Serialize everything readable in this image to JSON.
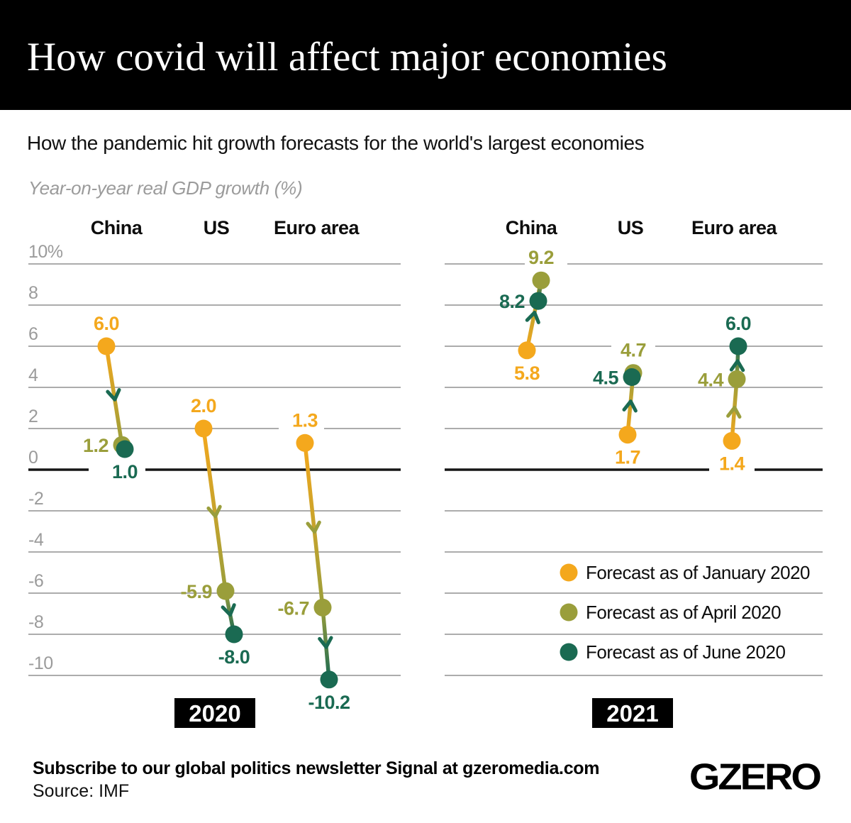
{
  "header": {
    "title": "How covid will affect major economies"
  },
  "subtitle": "How the pandemic hit growth forecasts for the world's largest economies",
  "axis_note": "Year-on-year real GDP growth (%)",
  "colors": {
    "january": "#F4A81D",
    "april": "#9A9E3B",
    "june": "#1A6A52",
    "grid_line": "#ACACAC",
    "zero_line": "#161616",
    "tick_label": "#9B9B9B",
    "header_text": "#0d0d0d",
    "year_badge_bg": "#000000",
    "year_badge_text": "#FFFFFF"
  },
  "legend": [
    {
      "series": "january",
      "label": "Forecast as of January 2020"
    },
    {
      "series": "april",
      "label": "Forecast as of April 2020"
    },
    {
      "series": "june",
      "label": "Forecast as of June 2020"
    }
  ],
  "chart_data": {
    "type": "scatter",
    "title": "How the pandemic hit growth forecasts for the world's largest economies",
    "ylabel": "Year-on-year real GDP growth (%)",
    "ylim": [
      -11,
      11
    ],
    "yticks": [
      10,
      8,
      6,
      4,
      2,
      0,
      -2,
      -4,
      -6,
      -8,
      -10
    ],
    "ytick_labels": [
      "10%",
      "8",
      "6",
      "4",
      "2",
      "0",
      "-2",
      "-4",
      "-6",
      "-8",
      "-10"
    ],
    "grid": true,
    "legend_position": "bottom-right-of-second-panel",
    "series_order": [
      "january",
      "april",
      "june"
    ],
    "panels": [
      {
        "year": "2020",
        "columns": [
          {
            "name": "China",
            "points": [
              {
                "series": "january",
                "value": 6.0,
                "label": "6.0",
                "label_pos": "above"
              },
              {
                "series": "april",
                "value": 1.2,
                "label": "1.2",
                "label_pos": "left"
              },
              {
                "series": "june",
                "value": 1.0,
                "label": "1.0",
                "label_pos": "below"
              }
            ]
          },
          {
            "name": "US",
            "points": [
              {
                "series": "january",
                "value": 2.0,
                "label": "2.0",
                "label_pos": "above"
              },
              {
                "series": "april",
                "value": -5.9,
                "label": "-5.9",
                "label_pos": "left"
              },
              {
                "series": "june",
                "value": -8.0,
                "label": "-8.0",
                "label_pos": "below"
              }
            ]
          },
          {
            "name": "Euro area",
            "points": [
              {
                "series": "january",
                "value": 1.3,
                "label": "1.3",
                "label_pos": "above"
              },
              {
                "series": "april",
                "value": -6.7,
                "label": "-6.7",
                "label_pos": "left"
              },
              {
                "series": "june",
                "value": -10.2,
                "label": "-10.2",
                "label_pos": "below"
              }
            ]
          }
        ]
      },
      {
        "year": "2021",
        "columns": [
          {
            "name": "China",
            "points": [
              {
                "series": "january",
                "value": 5.8,
                "label": "5.8",
                "label_pos": "below"
              },
              {
                "series": "april",
                "value": 9.2,
                "label": "9.2",
                "label_pos": "above"
              },
              {
                "series": "june",
                "value": 8.2,
                "label": "8.2",
                "label_pos": "left"
              }
            ]
          },
          {
            "name": "US",
            "points": [
              {
                "series": "january",
                "value": 1.7,
                "label": "1.7",
                "label_pos": "below"
              },
              {
                "series": "april",
                "value": 4.7,
                "label": "4.7",
                "label_pos": "above"
              },
              {
                "series": "june",
                "value": 4.5,
                "label": "4.5",
                "label_pos": "left"
              }
            ]
          },
          {
            "name": "Euro area",
            "points": [
              {
                "series": "january",
                "value": 1.4,
                "label": "1.4",
                "label_pos": "below"
              },
              {
                "series": "april",
                "value": 4.4,
                "label": "4.4",
                "label_pos": "left"
              },
              {
                "series": "june",
                "value": 6.0,
                "label": "6.0",
                "label_pos": "above"
              }
            ]
          }
        ]
      }
    ]
  },
  "footer": {
    "subscribe": "Subscribe to our global politics newsletter Signal at gzeromedia.com",
    "source": "Source: IMF",
    "logo": "GZERO"
  }
}
